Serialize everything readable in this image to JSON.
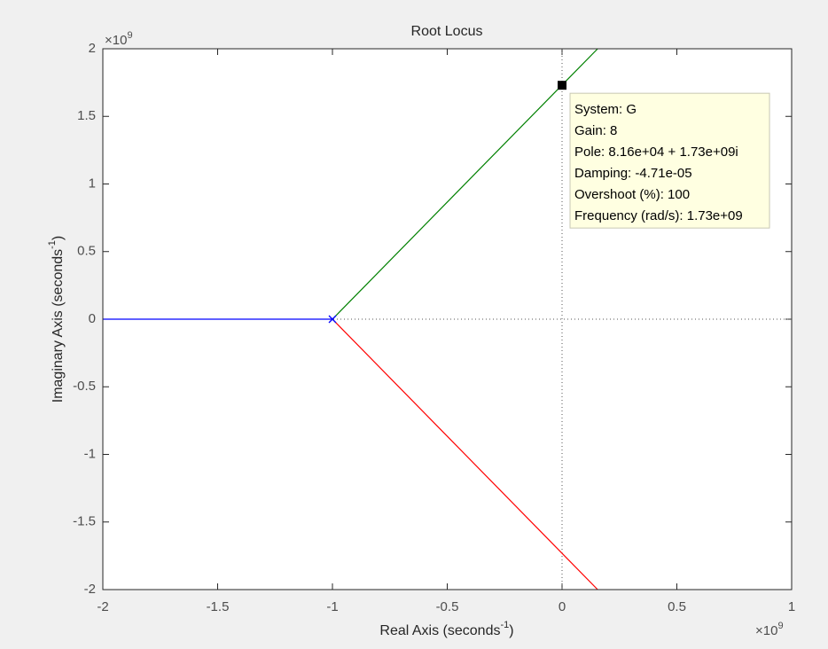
{
  "chart_data": {
    "type": "line",
    "title": "Root Locus",
    "xlabel": [
      "Real Axis (seconds",
      "-1",
      ")"
    ],
    "ylabel": [
      "Imaginary Axis (seconds",
      "-1",
      ")"
    ],
    "x_multiplier": [
      "×10",
      "9"
    ],
    "y_multiplier": [
      "×10",
      "9"
    ],
    "xlim": [
      -2,
      1
    ],
    "xticks": [
      -2,
      -1.5,
      -1,
      -0.5,
      0,
      0.5,
      1
    ],
    "ylim": [
      -2,
      2
    ],
    "yticks": [
      -2,
      -1.5,
      -1,
      -0.5,
      0,
      0.5,
      1,
      1.5,
      2
    ],
    "zero_lines": true,
    "series": [
      {
        "color": "#0000ff",
        "x": [
          -2,
          -1
        ],
        "values": [
          0,
          0
        ]
      },
      {
        "color": "#008000",
        "x": [
          -1,
          0.155
        ],
        "values": [
          0,
          2
        ]
      },
      {
        "color": "#ff0000",
        "x": [
          -1,
          0.155
        ],
        "values": [
          0,
          -2
        ]
      }
    ],
    "poles": [
      {
        "x": -1,
        "y": 0,
        "color": "#0000ff"
      }
    ],
    "datatip": {
      "x": 8.16e-05,
      "y": 1.73,
      "lines": [
        "System: G",
        "Gain: 8",
        "Pole: 8.16e+04 + 1.73e+09i",
        "Damping: -4.71e-05",
        "Overshoot (%): 100",
        "Frequency (rad/s): 1.73e+09"
      ]
    }
  }
}
